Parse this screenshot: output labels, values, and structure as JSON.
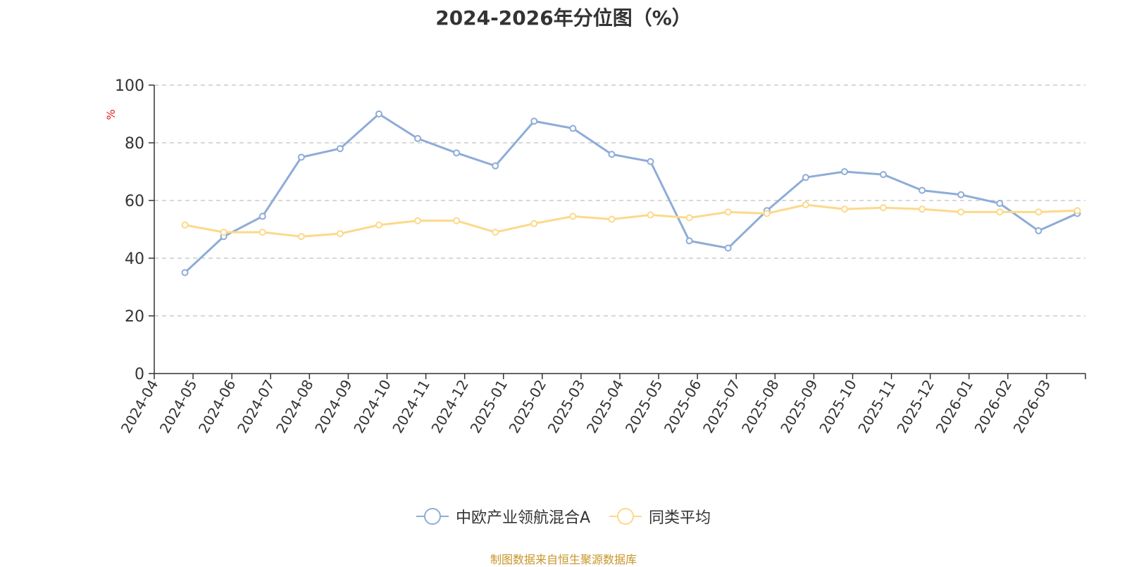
{
  "chart_data": {
    "type": "line",
    "title": "2024-2026年分位图（%）",
    "ylabel": "%",
    "xlabel": "",
    "ylim": [
      0,
      100
    ],
    "yticks": [
      0,
      20,
      40,
      60,
      80,
      100
    ],
    "grid": true,
    "legend_position": "bottom-center",
    "categories": [
      "2024-04",
      "2024-05",
      "2024-06",
      "2024-07",
      "2024-08",
      "2024-09",
      "2024-10",
      "2024-11",
      "2024-12",
      "2025-01",
      "2025-02",
      "2025-03",
      "2025-04",
      "2025-05",
      "2025-06",
      "2025-07",
      "2025-08",
      "2025-09",
      "2025-10",
      "2025-11",
      "2025-12",
      "2026-01",
      "2026-02",
      "2026-03"
    ],
    "series": [
      {
        "name": "中欧产业领航混合A",
        "color": "#8eacd8",
        "points": [
          {
            "x": "2024-04-25",
            "y": 35
          },
          {
            "x": "2024-05-25",
            "y": 47.5
          },
          {
            "x": "2024-06-25",
            "y": 54.5
          },
          {
            "x": "2024-07-25",
            "y": 75
          },
          {
            "x": "2024-08-25",
            "y": 78
          },
          {
            "x": "2024-09-25",
            "y": 90
          },
          {
            "x": "2024-10-25",
            "y": 81.5
          },
          {
            "x": "2024-11-25",
            "y": 76.5
          },
          {
            "x": "2024-12-25",
            "y": 72
          },
          {
            "x": "2025-01-25",
            "y": 87.5
          },
          {
            "x": "2025-02-25",
            "y": 85
          },
          {
            "x": "2025-03-25",
            "y": 76
          },
          {
            "x": "2025-04-25",
            "y": 73.5
          },
          {
            "x": "2025-05-25",
            "y": 46
          },
          {
            "x": "2025-06-25",
            "y": 43.5
          },
          {
            "x": "2025-07-25",
            "y": 56.5
          },
          {
            "x": "2025-08-25",
            "y": 68
          },
          {
            "x": "2025-09-25",
            "y": 70
          },
          {
            "x": "2025-10-25",
            "y": 69
          },
          {
            "x": "2025-11-25",
            "y": 63.5
          },
          {
            "x": "2025-12-25",
            "y": 62
          },
          {
            "x": "2026-01-25",
            "y": 59
          },
          {
            "x": "2026-02-25",
            "y": 49.5
          },
          {
            "x": "2026-03-25",
            "y": 55.5
          }
        ]
      },
      {
        "name": "同类平均",
        "color": "#fcd98a",
        "points": [
          {
            "x": "2024-04-25",
            "y": 51.5
          },
          {
            "x": "2024-05-25",
            "y": 49
          },
          {
            "x": "2024-06-25",
            "y": 49
          },
          {
            "x": "2024-07-25",
            "y": 47.5
          },
          {
            "x": "2024-08-25",
            "y": 48.5
          },
          {
            "x": "2024-09-25",
            "y": 51.5
          },
          {
            "x": "2024-10-25",
            "y": 53
          },
          {
            "x": "2024-11-25",
            "y": 53
          },
          {
            "x": "2024-12-25",
            "y": 49
          },
          {
            "x": "2025-01-25",
            "y": 52
          },
          {
            "x": "2025-02-25",
            "y": 54.5
          },
          {
            "x": "2025-03-25",
            "y": 53.5
          },
          {
            "x": "2025-04-25",
            "y": 55
          },
          {
            "x": "2025-05-25",
            "y": 54
          },
          {
            "x": "2025-06-25",
            "y": 56
          },
          {
            "x": "2025-07-25",
            "y": 55.5
          },
          {
            "x": "2025-08-25",
            "y": 58.5
          },
          {
            "x": "2025-09-25",
            "y": 57
          },
          {
            "x": "2025-10-25",
            "y": 57.5
          },
          {
            "x": "2025-11-25",
            "y": 57
          },
          {
            "x": "2025-12-25",
            "y": 56
          },
          {
            "x": "2026-01-25",
            "y": 56
          },
          {
            "x": "2026-02-25",
            "y": 56
          },
          {
            "x": "2026-03-25",
            "y": 56.5
          }
        ]
      }
    ]
  },
  "source_note": "制图数据来自恒生聚源数据库"
}
